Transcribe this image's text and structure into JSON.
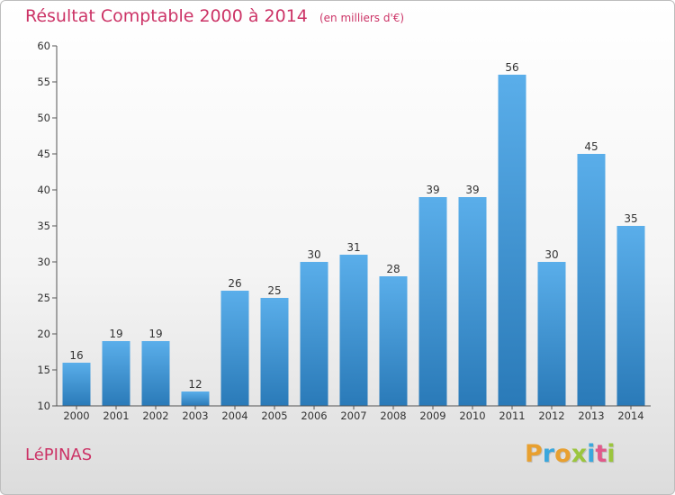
{
  "chart_data": {
    "type": "bar",
    "title": "Résultat Comptable 2000 à 2014",
    "subtitle": "(en milliers d'€)",
    "categories": [
      "2000",
      "2001",
      "2002",
      "2003",
      "2004",
      "2005",
      "2006",
      "2007",
      "2008",
      "2009",
      "2010",
      "2011",
      "2012",
      "2013",
      "2014"
    ],
    "values": [
      16,
      19,
      19,
      12,
      26,
      25,
      30,
      31,
      28,
      39,
      39,
      56,
      30,
      45,
      35
    ],
    "ylim": [
      10,
      60
    ],
    "yticks": [
      10,
      15,
      20,
      25,
      30,
      35,
      40,
      45,
      50,
      55,
      60
    ],
    "xlabel": "",
    "ylabel": "",
    "grid": false,
    "bar_color_top": "#5aaeea",
    "bar_color_bottom": "#2a7ab8"
  },
  "footer": {
    "commune": "LéPINAS",
    "brand_letters": [
      {
        "char": "P",
        "color": "#e8a030"
      },
      {
        "char": "r",
        "color": "#3aa7dd"
      },
      {
        "char": "o",
        "color": "#e8a030"
      },
      {
        "char": "x",
        "color": "#9bc53d"
      },
      {
        "char": "i",
        "color": "#3aa7dd"
      },
      {
        "char": "t",
        "color": "#e05a8a"
      },
      {
        "char": "i",
        "color": "#9bc53d"
      }
    ]
  },
  "colors": {
    "accent": "#cc3366",
    "axis": "#555555"
  }
}
